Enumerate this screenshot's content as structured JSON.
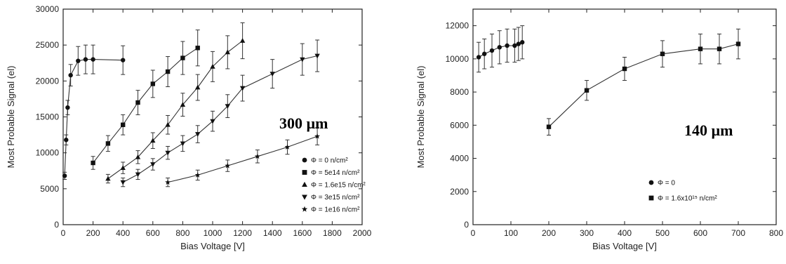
{
  "chart_data": [
    {
      "type": "line",
      "xlabel": "Bias Voltage [V]",
      "ylabel": "Most Probable Signal (el)",
      "xlim": [
        0,
        2000
      ],
      "ylim": [
        0,
        30000
      ],
      "xticks": [
        0,
        200,
        400,
        600,
        800,
        1000,
        1200,
        1400,
        1600,
        1800,
        2000
      ],
      "yticks": [
        0,
        5000,
        10000,
        15000,
        20000,
        25000,
        30000
      ],
      "grid": false,
      "legend_position": "bottom-right",
      "annotation": "300 µm",
      "series": [
        {
          "name": "Φ = 0 n/cm²",
          "marker": "circle",
          "x": [
            10,
            20,
            30,
            50,
            100,
            150,
            200,
            400
          ],
          "y": [
            6800,
            11800,
            16300,
            20800,
            22800,
            23000,
            23000,
            22900
          ],
          "err": [
            500,
            700,
            1000,
            1500,
            2000,
            2000,
            2000,
            2000
          ]
        },
        {
          "name": "Φ = 5e14 n/cm²",
          "marker": "square",
          "x": [
            200,
            300,
            400,
            500,
            600,
            700,
            800,
            900
          ],
          "y": [
            8600,
            11300,
            13900,
            17000,
            19600,
            21300,
            23200,
            24600
          ],
          "err": [
            900,
            1100,
            1400,
            1700,
            1900,
            2100,
            2300,
            2500
          ]
        },
        {
          "name": "Φ = 1.6e15 n/cm²",
          "marker": "triangle-up",
          "x": [
            300,
            400,
            500,
            600,
            700,
            800,
            900,
            1000,
            1100,
            1200
          ],
          "y": [
            6400,
            7900,
            9400,
            11700,
            13900,
            16700,
            19100,
            22000,
            24000,
            25600
          ],
          "err": [
            600,
            800,
            900,
            1100,
            1300,
            1600,
            1800,
            2100,
            2300,
            2500
          ]
        },
        {
          "name": "Φ = 3e15 n/cm²",
          "marker": "triangle-down",
          "x": [
            400,
            500,
            600,
            700,
            800,
            900,
            1000,
            1100,
            1200,
            1400,
            1600,
            1700
          ],
          "y": [
            5900,
            7000,
            8400,
            10000,
            11300,
            12600,
            14400,
            16500,
            19000,
            21000,
            23000,
            23500
          ],
          "err": [
            600,
            700,
            800,
            900,
            1100,
            1200,
            1400,
            1600,
            1800,
            2000,
            2200,
            2200
          ]
        },
        {
          "name": "Φ = 1e16 n/cm²",
          "marker": "star",
          "x": [
            700,
            900,
            1100,
            1300,
            1500,
            1700
          ],
          "y": [
            5900,
            6900,
            8200,
            9500,
            10800,
            12300
          ],
          "err": [
            600,
            700,
            800,
            900,
            1000,
            1200
          ]
        }
      ]
    },
    {
      "type": "line",
      "xlabel": "Bias Voltage [V]",
      "ylabel": "Most Probable Signal (el)",
      "xlim": [
        0,
        800
      ],
      "ylim": [
        0,
        13000
      ],
      "xticks": [
        0,
        100,
        200,
        300,
        400,
        500,
        600,
        700,
        800
      ],
      "yticks": [
        0,
        2000,
        4000,
        6000,
        8000,
        10000,
        12000
      ],
      "grid": false,
      "legend_position": "bottom-right",
      "annotation": "140 µm",
      "series": [
        {
          "name": "Φ = 0",
          "marker": "circle",
          "x": [
            15,
            30,
            50,
            70,
            90,
            110,
            120,
            130
          ],
          "y": [
            10100,
            10300,
            10500,
            10700,
            10800,
            10800,
            10900,
            11000
          ],
          "err": [
            900,
            900,
            1000,
            1000,
            1000,
            1000,
            1000,
            1000
          ]
        },
        {
          "name": "Φ = 1.6x10¹⁵ n/cm²",
          "marker": "square",
          "x": [
            200,
            300,
            400,
            500,
            600,
            650,
            700
          ],
          "y": [
            5900,
            8100,
            9400,
            10300,
            10600,
            10600,
            10900
          ],
          "err": [
            500,
            600,
            700,
            800,
            900,
            900,
            900
          ]
        }
      ]
    }
  ]
}
